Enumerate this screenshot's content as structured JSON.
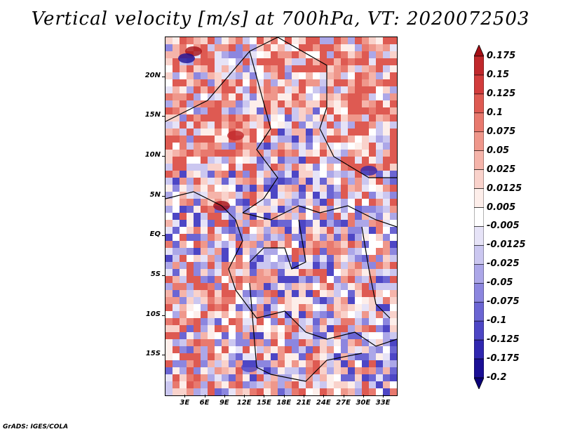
{
  "title": "Vertical velocity [m/s] at 700hPa, VT: 2020072503",
  "credit": "GrADS: IGES/COLA",
  "map": {
    "lat_range": [
      -20,
      25
    ],
    "lon_range": [
      0,
      35
    ],
    "y_ticks": [
      {
        "label": "20N",
        "lat": 20
      },
      {
        "label": "15N",
        "lat": 15
      },
      {
        "label": "10N",
        "lat": 10
      },
      {
        "label": "5N",
        "lat": 5
      },
      {
        "label": "EQ",
        "lat": 0
      },
      {
        "label": "5S",
        "lat": -5
      },
      {
        "label": "10S",
        "lat": -10
      },
      {
        "label": "15S",
        "lat": -15
      }
    ],
    "x_ticks": [
      {
        "label": "3E",
        "lon": 3
      },
      {
        "label": "6E",
        "lon": 6
      },
      {
        "label": "9E",
        "lon": 9
      },
      {
        "label": "12E",
        "lon": 12
      },
      {
        "label": "15E",
        "lon": 15
      },
      {
        "label": "18E",
        "lon": 18
      },
      {
        "label": "21E",
        "lon": 21
      },
      {
        "label": "24E",
        "lon": 24
      },
      {
        "label": "27E",
        "lon": 27
      },
      {
        "label": "30E",
        "lon": 30
      },
      {
        "label": "33E",
        "lon": 33
      }
    ]
  },
  "colorbar": {
    "labels": [
      "0.175",
      "0.15",
      "0.125",
      "0.1",
      "0.075",
      "0.05",
      "0.025",
      "0.0125",
      "0.005",
      "-0.005",
      "-0.0125",
      "-0.025",
      "-0.05",
      "-0.075",
      "-0.1",
      "-0.125",
      "-0.175",
      "-0.2"
    ],
    "colors": [
      "#a50f15",
      "#c0282c",
      "#d23c3c",
      "#de5a52",
      "#e8796e",
      "#ef978b",
      "#f5b4aa",
      "#f9d2cb",
      "#fdeeea",
      "#ffffff",
      "#e6e3f7",
      "#cbc7f0",
      "#aca7e8",
      "#8c86df",
      "#6b65d3",
      "#4d46c5",
      "#3027b0",
      "#1a0f95",
      "#0a0078"
    ]
  }
}
